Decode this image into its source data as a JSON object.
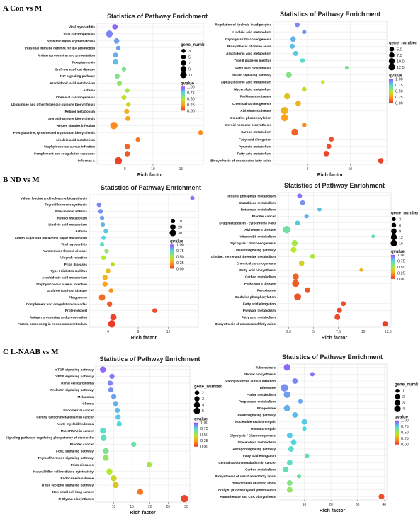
{
  "sections": [
    {
      "label": "A  Con vs M"
    },
    {
      "label": "B  ND vs M"
    },
    {
      "label": "C  L-NAAB vs M"
    }
  ],
  "colors": {
    "low": "#e8392b",
    "mid1": "#ffa21a",
    "mid2": "#b8e82a",
    "mid3": "#4fd9e0",
    "high": "#9b4bff",
    "grid": "#e6e6e6"
  },
  "chart_data": [
    {
      "type": "scatter",
      "title": "Statistics of Pathway Enrichment",
      "xlabel": "Rich factor",
      "xlim": [
        0,
        19
      ],
      "xticks": [
        5,
        10,
        15
      ],
      "size_legend": {
        "title": "gene_numb",
        "values": [
          3,
          5,
          7,
          9,
          11
        ]
      },
      "color_legend": {
        "title": "qvalue",
        "ticks": [
          "1.00",
          "0.75",
          "0.50",
          "0.25",
          "0.00"
        ]
      },
      "categories": [
        "Viral myocarditis",
        "Viral carcinogenesis",
        "Systemic lupus erythematosus",
        "Intestinal immune network for IgA production",
        "Antigen processing and presentation",
        "Toxoplasmosis",
        "Graft-versus-host disease",
        "TNF signaling pathway",
        "Arachidonic acid metabolism",
        "Asthma",
        "Chemical carcinogenesis",
        "Ubiquinone and other terpenoid-quinone biosynthesis",
        "Retinol metabolism",
        "Steroid hormone biosynthesis",
        "Herpes simplex infection",
        "Phenylalanine, tyrosine and tryptophan biosynthesis",
        "Linoleic acid metabolism",
        "Staphylococcus aureus infection",
        "Complement and coagulation cascades",
        "Influenza A"
      ],
      "points": [
        {
          "x": 3.2,
          "size": 5,
          "q": 0.95
        },
        {
          "x": 2.2,
          "size": 9,
          "q": 0.9
        },
        {
          "x": 3.5,
          "size": 5,
          "q": 0.85
        },
        {
          "x": 3.8,
          "size": 3,
          "q": 0.85
        },
        {
          "x": 3.3,
          "size": 4,
          "q": 0.82
        },
        {
          "x": 3.3,
          "size": 5,
          "q": 0.8
        },
        {
          "x": 4.8,
          "size": 3,
          "q": 0.62
        },
        {
          "x": 3.6,
          "size": 4,
          "q": 0.6
        },
        {
          "x": 4.0,
          "size": 4,
          "q": 0.55
        },
        {
          "x": 5.4,
          "size": 3,
          "q": 0.5
        },
        {
          "x": 4.8,
          "size": 4,
          "q": 0.42
        },
        {
          "x": 5.6,
          "size": 3,
          "q": 0.38
        },
        {
          "x": 5.3,
          "size": 4,
          "q": 0.3
        },
        {
          "x": 5.5,
          "size": 4,
          "q": 0.25
        },
        {
          "x": 3.0,
          "size": 11,
          "q": 0.2
        },
        {
          "x": 18.5,
          "size": 3,
          "q": 0.2
        },
        {
          "x": 7.3,
          "size": 3,
          "q": 0.15
        },
        {
          "x": 5.4,
          "size": 5,
          "q": 0.1
        },
        {
          "x": 5.4,
          "size": 5,
          "q": 0.08
        },
        {
          "x": 3.8,
          "size": 11,
          "q": 0.02
        }
      ]
    },
    {
      "type": "scatter",
      "title": "Statistics of Pathway Enrichment",
      "xlabel": "Rich factor",
      "xlim": [
        1,
        14.3
      ],
      "xticks": [
        5,
        10
      ],
      "size_legend": {
        "title": "gene_number",
        "values": [
          "5.0",
          "7.5",
          "10.0",
          "12.5"
        ]
      },
      "color_legend": {
        "title": "qvalue",
        "ticks": [
          "1.00",
          "0.75",
          "0.50",
          "0.25",
          "0.00"
        ]
      },
      "categories": [
        "Regulation of lipolysis in adipocytes",
        "Linoleic acid metabolism",
        "Glycolysis / Gluconeogenesis",
        "Biosynthesis of amino acids",
        "Arachidonic acid metabolism",
        "Type II diabetes mellitus",
        "Fatty acid biosynthesis",
        "Insulin signaling pathway",
        "alpha-Linolenic acid metabolism",
        "Glycerolipid metabolism",
        "Parkinson's disease",
        "Chemical carcinogenesis",
        "Alzheimer's disease",
        "Oxidative phosphorylation",
        "Steroid hormone biosynthesis",
        "Carbon metabolism",
        "Fatty acid elongation",
        "Pyruvate metabolism",
        "Fatty acid metabolism",
        "Biosynthesis of unsaturated fatty acids"
      ],
      "points": [
        {
          "x": 3.8,
          "size": 4,
          "q": 0.9
        },
        {
          "x": 4.6,
          "size": 3,
          "q": 0.88
        },
        {
          "x": 3.3,
          "size": 6,
          "q": 0.82
        },
        {
          "x": 3.2,
          "size": 5,
          "q": 0.8
        },
        {
          "x": 3.6,
          "size": 5,
          "q": 0.78
        },
        {
          "x": 4.4,
          "size": 4,
          "q": 0.72
        },
        {
          "x": 9.6,
          "size": 2,
          "q": 0.62
        },
        {
          "x": 2.8,
          "size": 8,
          "q": 0.6
        },
        {
          "x": 6.8,
          "size": 2,
          "q": 0.45
        },
        {
          "x": 4.6,
          "size": 4,
          "q": 0.4
        },
        {
          "x": 2.6,
          "size": 8,
          "q": 0.35
        },
        {
          "x": 3.9,
          "size": 6,
          "q": 0.3
        },
        {
          "x": 2.3,
          "size": 13,
          "q": 0.3
        },
        {
          "x": 2.3,
          "size": 11,
          "q": 0.25
        },
        {
          "x": 4.6,
          "size": 4,
          "q": 0.2
        },
        {
          "x": 3.5,
          "size": 11,
          "q": 0.1
        },
        {
          "x": 7.8,
          "size": 4,
          "q": 0.05
        },
        {
          "x": 7.5,
          "size": 4,
          "q": 0.05
        },
        {
          "x": 7.2,
          "size": 6,
          "q": 0.03
        },
        {
          "x": 13.6,
          "size": 6,
          "q": 0.02
        }
      ]
    },
    {
      "type": "scatter",
      "title": "Statistics of Pathway Enrichment",
      "xlabel": "Rich factor",
      "xlim": [
        1.5,
        16
      ],
      "xticks": [
        4,
        8,
        12
      ],
      "size_legend": {
        "title": "",
        "values": [
          "10",
          "20",
          "30"
        ]
      },
      "color_legend": {
        "title": "qvalue",
        "ticks": [
          "1.00",
          "0.75",
          "0.50",
          "0.25",
          "0.00"
        ]
      },
      "categories": [
        "Valine, leucine and isoleucine biosynthesis",
        "Thyroid hormone synthesis",
        "Rheumatoid arthritis",
        "Retinol metabolism",
        "Linoleic acid metabolism",
        "Asthma",
        "Amino sugar and nucleotide sugar metabolism",
        "Viral myocarditis",
        "Autoimmune thyroid disease",
        "Allograft rejection",
        "Prion diseases",
        "Type I diabetes mellitus",
        "Arachidonic acid metabolism",
        "Staphylococcus aureus infection",
        "Graft-versus-host disease",
        "Phagosome",
        "Complement and coagulation cascades",
        "Protein export",
        "Antigen processing and presentation",
        "Protein processing in endoplasmic reticulum"
      ],
      "points": [
        {
          "x": 15.2,
          "size": 5,
          "q": 0.92
        },
        {
          "x": 2.8,
          "size": 6,
          "q": 0.9
        },
        {
          "x": 3.0,
          "size": 6,
          "q": 0.88
        },
        {
          "x": 3.2,
          "size": 5,
          "q": 0.85
        },
        {
          "x": 3.3,
          "size": 5,
          "q": 0.82
        },
        {
          "x": 3.7,
          "size": 5,
          "q": 0.78
        },
        {
          "x": 3.4,
          "size": 5,
          "q": 0.75
        },
        {
          "x": 3.2,
          "size": 5,
          "q": 0.7
        },
        {
          "x": 3.8,
          "size": 5,
          "q": 0.55
        },
        {
          "x": 3.4,
          "size": 6,
          "q": 0.45
        },
        {
          "x": 4.6,
          "size": 5,
          "q": 0.4
        },
        {
          "x": 4.0,
          "size": 6,
          "q": 0.32
        },
        {
          "x": 3.6,
          "size": 8,
          "q": 0.3
        },
        {
          "x": 3.6,
          "size": 8,
          "q": 0.25
        },
        {
          "x": 4.4,
          "size": 6,
          "q": 0.2
        },
        {
          "x": 3.2,
          "size": 14,
          "q": 0.12
        },
        {
          "x": 4.2,
          "size": 8,
          "q": 0.08
        },
        {
          "x": 10.2,
          "size": 6,
          "q": 0.05
        },
        {
          "x": 4.7,
          "size": 14,
          "q": 0.03
        },
        {
          "x": 4.5,
          "size": 20,
          "q": 0.01
        }
      ]
    },
    {
      "type": "scatter",
      "title": "Statistics of Pathway Enrichment",
      "xlabel": "Rich factor",
      "xlim": [
        1.4,
        12.8
      ],
      "xticks": [
        2.5,
        5.0,
        7.5,
        10.0,
        12.5
      ],
      "size_legend": {
        "title": "gene_number",
        "values": [
          "3",
          "6",
          "9",
          "12",
          "15"
        ]
      },
      "color_legend": {
        "title": "qvalue",
        "ticks": [
          "1.00",
          "0.75",
          "0.50",
          "0.25",
          "0.00"
        ]
      },
      "categories": [
        "Inositol phosphate metabolism",
        "Glutathione metabolism",
        "Butanoate metabolism",
        "Bladder cancer",
        "Drug metabolism - cytochrome P450",
        "Alzheimer's disease",
        "Vitamin B6 metabolism",
        "Glycolysis / Gluconeogenesis",
        "Insulin signaling pathway",
        "Glycine, serine and threonine metabolism",
        "Chemical carcinogenesis",
        "Fatty acid biosynthesis",
        "Carbon metabolism",
        "Parkinson's disease",
        "Peroxisome",
        "Oxidative phosphorylation",
        "Fatty acid elongation",
        "Pyruvate metabolism",
        "Fatty acid metabolism",
        "Biosynthesis of unsaturated fatty acids"
      ],
      "points": [
        {
          "x": 3.6,
          "size": 5,
          "q": 0.92
        },
        {
          "x": 3.9,
          "size": 5,
          "q": 0.88
        },
        {
          "x": 5.6,
          "size": 3,
          "q": 0.8
        },
        {
          "x": 4.3,
          "size": 4,
          "q": 0.82
        },
        {
          "x": 3.4,
          "size": 5,
          "q": 0.78
        },
        {
          "x": 2.3,
          "size": 15,
          "q": 0.65
        },
        {
          "x": 11.0,
          "size": 2,
          "q": 0.7
        },
        {
          "x": 3.1,
          "size": 9,
          "q": 0.5
        },
        {
          "x": 3.0,
          "size": 8,
          "q": 0.45
        },
        {
          "x": 4.9,
          "size": 5,
          "q": 0.48
        },
        {
          "x": 3.8,
          "size": 7,
          "q": 0.38
        },
        {
          "x": 9.8,
          "size": 2,
          "q": 0.3
        },
        {
          "x": 3.2,
          "size": 10,
          "q": 0.1
        },
        {
          "x": 3.2,
          "size": 13,
          "q": 0.08
        },
        {
          "x": 4.4,
          "size": 8,
          "q": 0.08
        },
        {
          "x": 3.4,
          "size": 13,
          "q": 0.06
        },
        {
          "x": 8.0,
          "size": 5,
          "q": 0.05
        },
        {
          "x": 7.6,
          "size": 6,
          "q": 0.04
        },
        {
          "x": 7.4,
          "size": 8,
          "q": 0.04
        },
        {
          "x": 12.2,
          "size": 8,
          "q": 0.02
        }
      ]
    },
    {
      "type": "scatter",
      "title": "Statistics of Pathway Enrichment",
      "xlabel": "Rich factor",
      "xlim": [
        5,
        31
      ],
      "xticks": [
        10,
        15,
        20,
        25,
        30
      ],
      "size_legend": {
        "title": "gene_number",
        "values": [
          "2",
          "3",
          "4",
          "5"
        ]
      },
      "color_legend": {
        "title": "qvalue",
        "ticks": [
          "1.00",
          "0.75",
          "0.50",
          "0.25",
          "0.00"
        ]
      },
      "categories": [
        "mTOR signaling pathway",
        "VEGF signaling pathway",
        "Renal cell carcinoma",
        "Prolactin signaling pathway",
        "Melanoma",
        "Glioma",
        "Endometrial cancer",
        "Central carbon metabolism in cancer",
        "Acute myeloid leukemia",
        "MicroRNAs in cancer",
        "Signaling pathways regulating pluripotency of stem cells",
        "Bladder cancer",
        "FoxO signaling pathway",
        "Thyroid hormone signaling pathway",
        "Prion diseases",
        "Natural killer cell mediated cytotoxicity",
        "Endocrine resistance",
        "B cell receptor signaling pathway",
        "Non-small cell lung cancer",
        "N-Glycan biosynthesis"
      ],
      "points": [
        {
          "x": 7.0,
          "size": 3,
          "q": 0.95
        },
        {
          "x": 9.5,
          "size": 2,
          "q": 0.92
        },
        {
          "x": 9.0,
          "size": 2,
          "q": 0.9
        },
        {
          "x": 9.2,
          "size": 2,
          "q": 0.88
        },
        {
          "x": 10.0,
          "size": 2,
          "q": 0.85
        },
        {
          "x": 10.5,
          "size": 2,
          "q": 0.82
        },
        {
          "x": 11.0,
          "size": 2,
          "q": 0.8
        },
        {
          "x": 11.2,
          "size": 2,
          "q": 0.78
        },
        {
          "x": 11.5,
          "size": 2,
          "q": 0.75
        },
        {
          "x": 7.0,
          "size": 3,
          "q": 0.72
        },
        {
          "x": 7.2,
          "size": 3,
          "q": 0.7
        },
        {
          "x": 15.5,
          "size": 2,
          "q": 0.66
        },
        {
          "x": 7.8,
          "size": 3,
          "q": 0.62
        },
        {
          "x": 7.8,
          "size": 3,
          "q": 0.55
        },
        {
          "x": 19.8,
          "size": 2,
          "q": 0.5
        },
        {
          "x": 8.8,
          "size": 3,
          "q": 0.45
        },
        {
          "x": 10.0,
          "size": 3,
          "q": 0.4
        },
        {
          "x": 10.5,
          "size": 3,
          "q": 0.35
        },
        {
          "x": 17.3,
          "size": 3,
          "q": 0.15
        },
        {
          "x": 29.5,
          "size": 5,
          "q": 0.03
        }
      ]
    },
    {
      "type": "scatter",
      "title": "Statistics of Pathway Enrichment",
      "xlabel": "Rich factor",
      "xlim": [
        0,
        41
      ],
      "xticks": [
        10,
        20,
        30,
        40
      ],
      "size_legend": {
        "title": "gene_number",
        "values": [
          "1",
          "2",
          "3",
          "4"
        ]
      },
      "color_legend": {
        "title": "qvalue",
        "ticks": [
          "1.00",
          "0.75",
          "0.50",
          "0.25",
          "0.00"
        ]
      },
      "categories": [
        "Tuberculosis",
        "Steroid biosynthesis",
        "Staphylococcus aureus infection",
        "Ribosome",
        "Purine metabolism",
        "Propanoate metabolism",
        "Phagosome",
        "PPAR signaling pathway",
        "Nucleotide excision repair",
        "Mismatch repair",
        "Glycolysis / Gluconeogenesis",
        "Glycerolipid metabolism",
        "Glucagon signaling pathway",
        "Fatty acid elongation",
        "Central carbon metabolism in cancer",
        "Carbon metabolism",
        "Biosynthesis of unsaturated fatty acids",
        "Biosynthesis of amino acids",
        "Antigen processing and presentation",
        "Pantothenate and CoA biosynthesis"
      ],
      "points": [
        {
          "x": 3.5,
          "size": 3,
          "q": 0.95
        },
        {
          "x": 13.0,
          "size": 1,
          "q": 0.92
        },
        {
          "x": 6.5,
          "size": 2,
          "q": 0.9
        },
        {
          "x": 2.5,
          "size": 4,
          "q": 0.88
        },
        {
          "x": 3.5,
          "size": 3,
          "q": 0.86
        },
        {
          "x": 8.5,
          "size": 1,
          "q": 0.84
        },
        {
          "x": 3.5,
          "size": 3,
          "q": 0.82
        },
        {
          "x": 6.5,
          "size": 2,
          "q": 0.8
        },
        {
          "x": 10.0,
          "size": 2,
          "q": 0.78
        },
        {
          "x": 10.0,
          "size": 1,
          "q": 0.75
        },
        {
          "x": 4.5,
          "size": 2,
          "q": 0.78
        },
        {
          "x": 6.0,
          "size": 2,
          "q": 0.76
        },
        {
          "x": 5.0,
          "size": 2,
          "q": 0.72
        },
        {
          "x": 11.0,
          "size": 1,
          "q": 0.7
        },
        {
          "x": 4.5,
          "size": 2,
          "q": 0.7
        },
        {
          "x": 3.0,
          "size": 2,
          "q": 0.68
        },
        {
          "x": 8.0,
          "size": 1,
          "q": 0.65
        },
        {
          "x": 4.5,
          "size": 2,
          "q": 0.6
        },
        {
          "x": 4.5,
          "size": 2,
          "q": 0.55
        },
        {
          "x": 39.0,
          "size": 2,
          "q": 0.05
        }
      ]
    }
  ]
}
